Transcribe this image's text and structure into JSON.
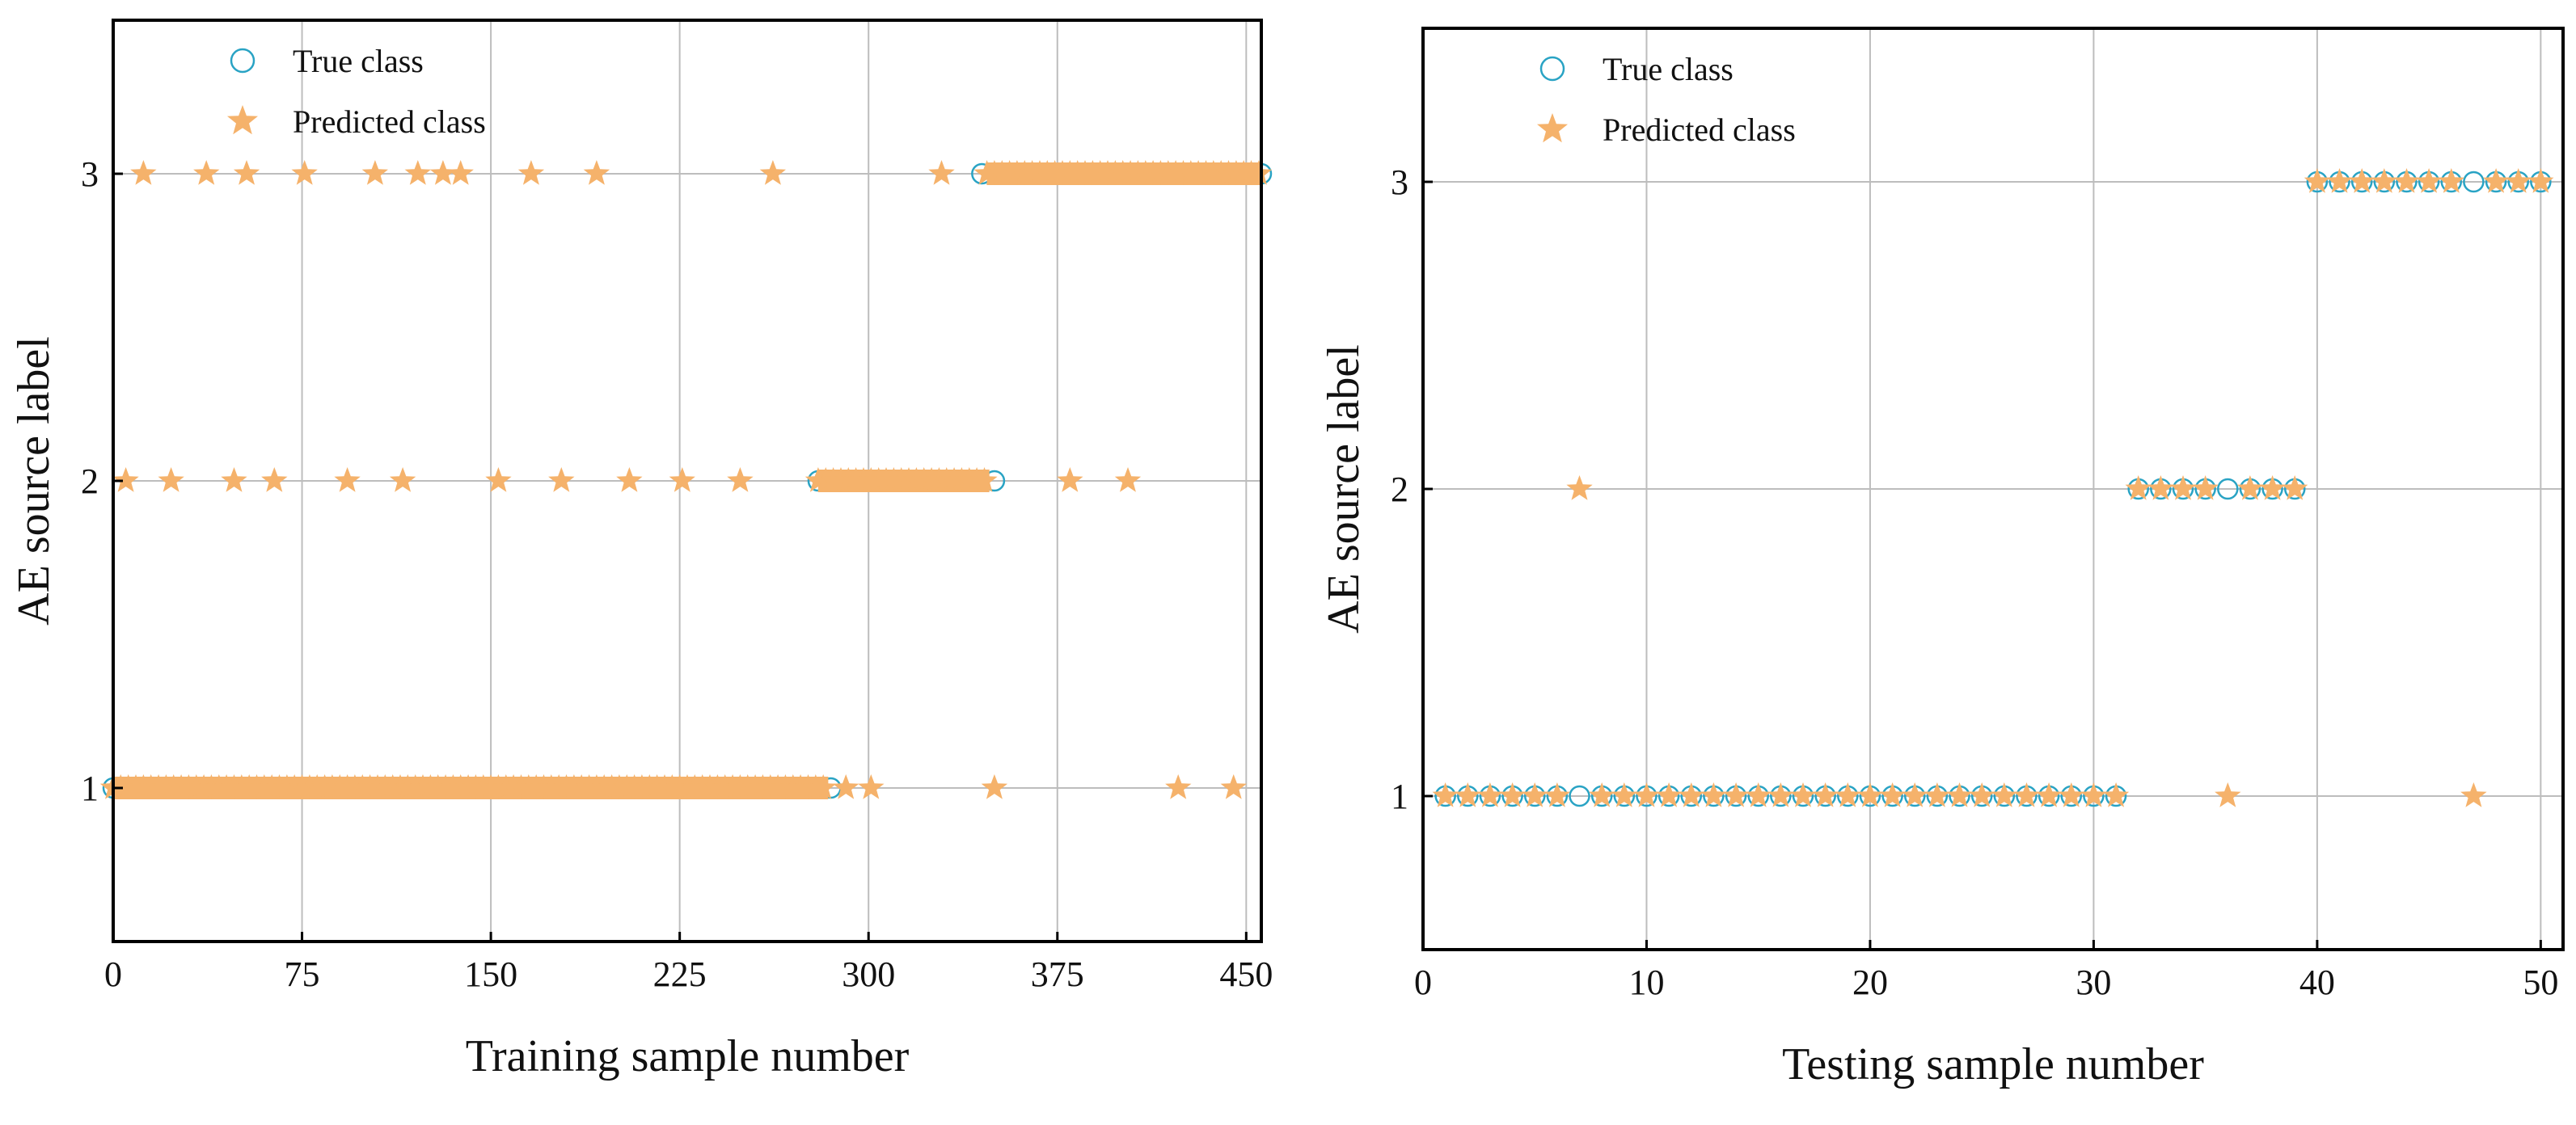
{
  "colors": {
    "true_marker": "#29a3c4",
    "pred_marker": "#f5b26b",
    "grid": "#bdbdbd",
    "axis": "#000000"
  },
  "chart_data": [
    {
      "type": "scatter",
      "xlabel": "Training sample number",
      "ylabel": "AE source label",
      "xlim": [
        0,
        456
      ],
      "ylim": [
        0.5,
        3.5
      ],
      "xticks": [
        0,
        75,
        150,
        225,
        300,
        375,
        450
      ],
      "yticks": [
        1,
        2,
        3
      ],
      "grid": true,
      "legend_position": "top-left",
      "legend": [
        "True class",
        "Predicted class"
      ],
      "true_class": {
        "dense_ranges": [
          {
            "from": 0,
            "to": 285,
            "label": 1
          },
          {
            "from": 280,
            "to": 350,
            "label": 2
          },
          {
            "from": 345,
            "to": 456,
            "label": 3
          }
        ]
      },
      "predicted_class": {
        "dense_ranges": [
          {
            "from": 0,
            "to": 284,
            "label": 1
          },
          {
            "from": 280,
            "to": 348,
            "label": 2
          },
          {
            "from": 347,
            "to": 456,
            "label": 3
          }
        ],
        "isolated_points": [
          [
            291,
            1
          ],
          [
            301,
            1
          ],
          [
            350,
            1
          ],
          [
            423,
            1
          ],
          [
            445,
            1
          ],
          [
            5,
            2
          ],
          [
            23,
            2
          ],
          [
            48,
            2
          ],
          [
            64,
            2
          ],
          [
            93,
            2
          ],
          [
            115,
            2
          ],
          [
            153,
            2
          ],
          [
            178,
            2
          ],
          [
            205,
            2
          ],
          [
            226,
            2
          ],
          [
            249,
            2
          ],
          [
            380,
            2
          ],
          [
            403,
            2
          ],
          [
            12,
            3
          ],
          [
            37,
            3
          ],
          [
            53,
            3
          ],
          [
            76,
            3
          ],
          [
            104,
            3
          ],
          [
            121,
            3
          ],
          [
            131,
            3
          ],
          [
            138,
            3
          ],
          [
            166,
            3
          ],
          [
            192,
            3
          ],
          [
            262,
            3
          ],
          [
            329,
            3
          ]
        ]
      }
    },
    {
      "type": "scatter",
      "xlabel": "Testing sample number",
      "ylabel": "AE source label",
      "xlim": [
        0,
        51
      ],
      "ylim": [
        0.5,
        3.5
      ],
      "xticks": [
        0,
        10,
        20,
        30,
        40,
        50
      ],
      "yticks": [
        1,
        2,
        3
      ],
      "grid": true,
      "legend_position": "top-left",
      "legend": [
        "True class",
        "Predicted class"
      ],
      "true_class": [
        [
          1,
          1
        ],
        [
          2,
          1
        ],
        [
          3,
          1
        ],
        [
          4,
          1
        ],
        [
          5,
          1
        ],
        [
          6,
          1
        ],
        [
          7,
          1
        ],
        [
          8,
          1
        ],
        [
          9,
          1
        ],
        [
          10,
          1
        ],
        [
          11,
          1
        ],
        [
          12,
          1
        ],
        [
          13,
          1
        ],
        [
          14,
          1
        ],
        [
          15,
          1
        ],
        [
          16,
          1
        ],
        [
          17,
          1
        ],
        [
          18,
          1
        ],
        [
          19,
          1
        ],
        [
          20,
          1
        ],
        [
          21,
          1
        ],
        [
          22,
          1
        ],
        [
          23,
          1
        ],
        [
          24,
          1
        ],
        [
          25,
          1
        ],
        [
          26,
          1
        ],
        [
          27,
          1
        ],
        [
          28,
          1
        ],
        [
          29,
          1
        ],
        [
          30,
          1
        ],
        [
          31,
          1
        ],
        [
          32,
          2
        ],
        [
          33,
          2
        ],
        [
          34,
          2
        ],
        [
          35,
          2
        ],
        [
          36,
          2
        ],
        [
          37,
          2
        ],
        [
          38,
          2
        ],
        [
          39,
          2
        ],
        [
          40,
          3
        ],
        [
          41,
          3
        ],
        [
          42,
          3
        ],
        [
          43,
          3
        ],
        [
          44,
          3
        ],
        [
          45,
          3
        ],
        [
          46,
          3
        ],
        [
          47,
          3
        ],
        [
          48,
          3
        ],
        [
          49,
          3
        ],
        [
          50,
          3
        ]
      ],
      "predicted_class": [
        [
          1,
          1
        ],
        [
          2,
          1
        ],
        [
          3,
          1
        ],
        [
          4,
          1
        ],
        [
          5,
          1
        ],
        [
          6,
          1
        ],
        [
          7,
          2
        ],
        [
          8,
          1
        ],
        [
          9,
          1
        ],
        [
          10,
          1
        ],
        [
          11,
          1
        ],
        [
          12,
          1
        ],
        [
          13,
          1
        ],
        [
          14,
          1
        ],
        [
          15,
          1
        ],
        [
          16,
          1
        ],
        [
          17,
          1
        ],
        [
          18,
          1
        ],
        [
          19,
          1
        ],
        [
          20,
          1
        ],
        [
          21,
          1
        ],
        [
          22,
          1
        ],
        [
          23,
          1
        ],
        [
          24,
          1
        ],
        [
          25,
          1
        ],
        [
          26,
          1
        ],
        [
          27,
          1
        ],
        [
          28,
          1
        ],
        [
          29,
          1
        ],
        [
          30,
          1
        ],
        [
          31,
          1
        ],
        [
          32,
          2
        ],
        [
          33,
          2
        ],
        [
          34,
          2
        ],
        [
          35,
          2
        ],
        [
          36,
          1
        ],
        [
          37,
          2
        ],
        [
          38,
          2
        ],
        [
          39,
          2
        ],
        [
          40,
          3
        ],
        [
          41,
          3
        ],
        [
          42,
          3
        ],
        [
          43,
          3
        ],
        [
          44,
          3
        ],
        [
          45,
          3
        ],
        [
          46,
          3
        ],
        [
          47,
          1
        ],
        [
          48,
          3
        ],
        [
          49,
          3
        ],
        [
          50,
          3
        ]
      ]
    }
  ]
}
